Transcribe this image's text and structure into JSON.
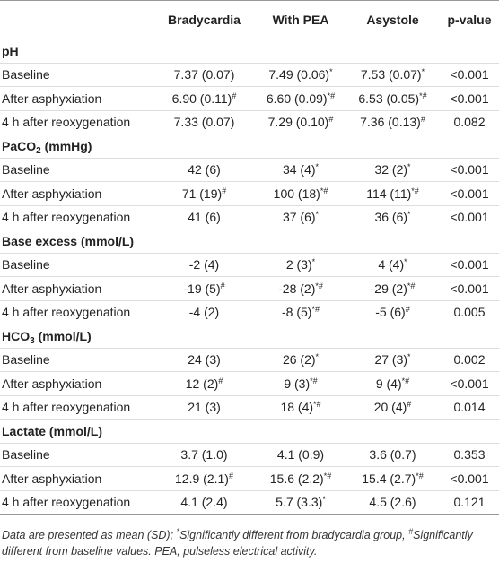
{
  "table": {
    "header": [
      "Bradycardia",
      "With PEA",
      "Asystole",
      "p-value"
    ],
    "sections": [
      {
        "title": {
          "text": "pH"
        },
        "rows": [
          {
            "label": "Baseline",
            "cells": [
              {
                "text": "7.37 (0.07)"
              },
              {
                "text": "7.49 (0.06)",
                "sup": "*"
              },
              {
                "text": "7.53 (0.07)",
                "sup": "*"
              },
              {
                "text": "<0.001"
              }
            ]
          },
          {
            "label": "After asphyxiation",
            "cells": [
              {
                "text": "6.90 (0.11)",
                "sup": "#"
              },
              {
                "text": "6.60 (0.09)",
                "sup": "*#"
              },
              {
                "text": "6.53 (0.05)",
                "sup": "*#"
              },
              {
                "text": "<0.001"
              }
            ]
          },
          {
            "label": "4 h after reoxygenation",
            "cells": [
              {
                "text": "7.33 (0.07)"
              },
              {
                "text": "7.29 (0.10)",
                "sup": "#"
              },
              {
                "text": "7.36 (0.13)",
                "sup": "#"
              },
              {
                "text": "0.082"
              }
            ]
          }
        ]
      },
      {
        "title": {
          "text": "PaCO",
          "sub": "2",
          "after": " (mmHg)"
        },
        "rows": [
          {
            "label": "Baseline",
            "cells": [
              {
                "text": "42 (6)"
              },
              {
                "text": "34 (4)",
                "sup": "*"
              },
              {
                "text": "32 (2)",
                "sup": "*"
              },
              {
                "text": "<0.001"
              }
            ]
          },
          {
            "label": "After asphyxiation",
            "cells": [
              {
                "text": "71 (19)",
                "sup": "#"
              },
              {
                "text": "100 (18)",
                "sup": "*#"
              },
              {
                "text": "114 (11)",
                "sup": "*#"
              },
              {
                "text": "<0.001"
              }
            ]
          },
          {
            "label": "4 h after reoxygenation",
            "cells": [
              {
                "text": "41 (6)"
              },
              {
                "text": "37 (6)",
                "sup": "*"
              },
              {
                "text": "36 (6)",
                "sup": "*"
              },
              {
                "text": "<0.001"
              }
            ]
          }
        ]
      },
      {
        "title": {
          "text": "Base excess (mmol/L)"
        },
        "rows": [
          {
            "label": "Baseline",
            "cells": [
              {
                "text": "-2 (4)"
              },
              {
                "text": "2 (3)",
                "sup": "*"
              },
              {
                "text": "4 (4)",
                "sup": "*"
              },
              {
                "text": "<0.001"
              }
            ]
          },
          {
            "label": "After asphyxiation",
            "cells": [
              {
                "text": "-19 (5)",
                "sup": "#"
              },
              {
                "text": "-28 (2)",
                "sup": "*#"
              },
              {
                "text": "-29 (2)",
                "sup": "*#"
              },
              {
                "text": "<0.001"
              }
            ]
          },
          {
            "label": "4 h after reoxygenation",
            "cells": [
              {
                "text": "-4 (2)"
              },
              {
                "text": "-8 (5)",
                "sup": "*#"
              },
              {
                "text": "-5 (6)",
                "sup": "#"
              },
              {
                "text": "0.005"
              }
            ]
          }
        ]
      },
      {
        "title": {
          "text": "HCO",
          "sub": "3",
          "after": " (mmol/L)"
        },
        "rows": [
          {
            "label": "Baseline",
            "cells": [
              {
                "text": "24 (3)"
              },
              {
                "text": "26 (2)",
                "sup": "*"
              },
              {
                "text": "27 (3)",
                "sup": "*"
              },
              {
                "text": "0.002"
              }
            ]
          },
          {
            "label": "After asphyxiation",
            "cells": [
              {
                "text": "12 (2)",
                "sup": "#"
              },
              {
                "text": "9 (3)",
                "sup": "*#"
              },
              {
                "text": "9 (4)",
                "sup": "*#"
              },
              {
                "text": "<0.001"
              }
            ]
          },
          {
            "label": "4 h after reoxygenation",
            "cells": [
              {
                "text": "21 (3)"
              },
              {
                "text": "18 (4)",
                "sup": "*#"
              },
              {
                "text": "20 (4)",
                "sup": "#"
              },
              {
                "text": "0.014"
              }
            ]
          }
        ]
      },
      {
        "title": {
          "text": "Lactate (mmol/L)"
        },
        "rows": [
          {
            "label": "Baseline",
            "cells": [
              {
                "text": "3.7 (1.0)"
              },
              {
                "text": "4.1 (0.9)"
              },
              {
                "text": "3.6 (0.7)"
              },
              {
                "text": "0.353"
              }
            ]
          },
          {
            "label": "After asphyxiation",
            "cells": [
              {
                "text": "12.9 (2.1)",
                "sup": "#"
              },
              {
                "text": "15.6 (2.2)",
                "sup": "*#"
              },
              {
                "text": "15.4 (2.7)",
                "sup": "*#"
              },
              {
                "text": "<0.001"
              }
            ]
          },
          {
            "label": "4 h after reoxygenation",
            "cells": [
              {
                "text": "4.1 (2.4)"
              },
              {
                "text": "5.7 (3.3)",
                "sup": "*"
              },
              {
                "text": "4.5 (2.6)"
              },
              {
                "text": "0.121"
              }
            ]
          }
        ]
      }
    ],
    "footnote": {
      "lead": "Data are presented as mean (SD); ",
      "notes": [
        {
          "mark": "*",
          "text": "Significantly different from bradycardia group, "
        },
        {
          "mark": "#",
          "text": "Significantly different from baseline values. "
        }
      ],
      "abbr": "PEA, pulseless electrical activity."
    }
  }
}
